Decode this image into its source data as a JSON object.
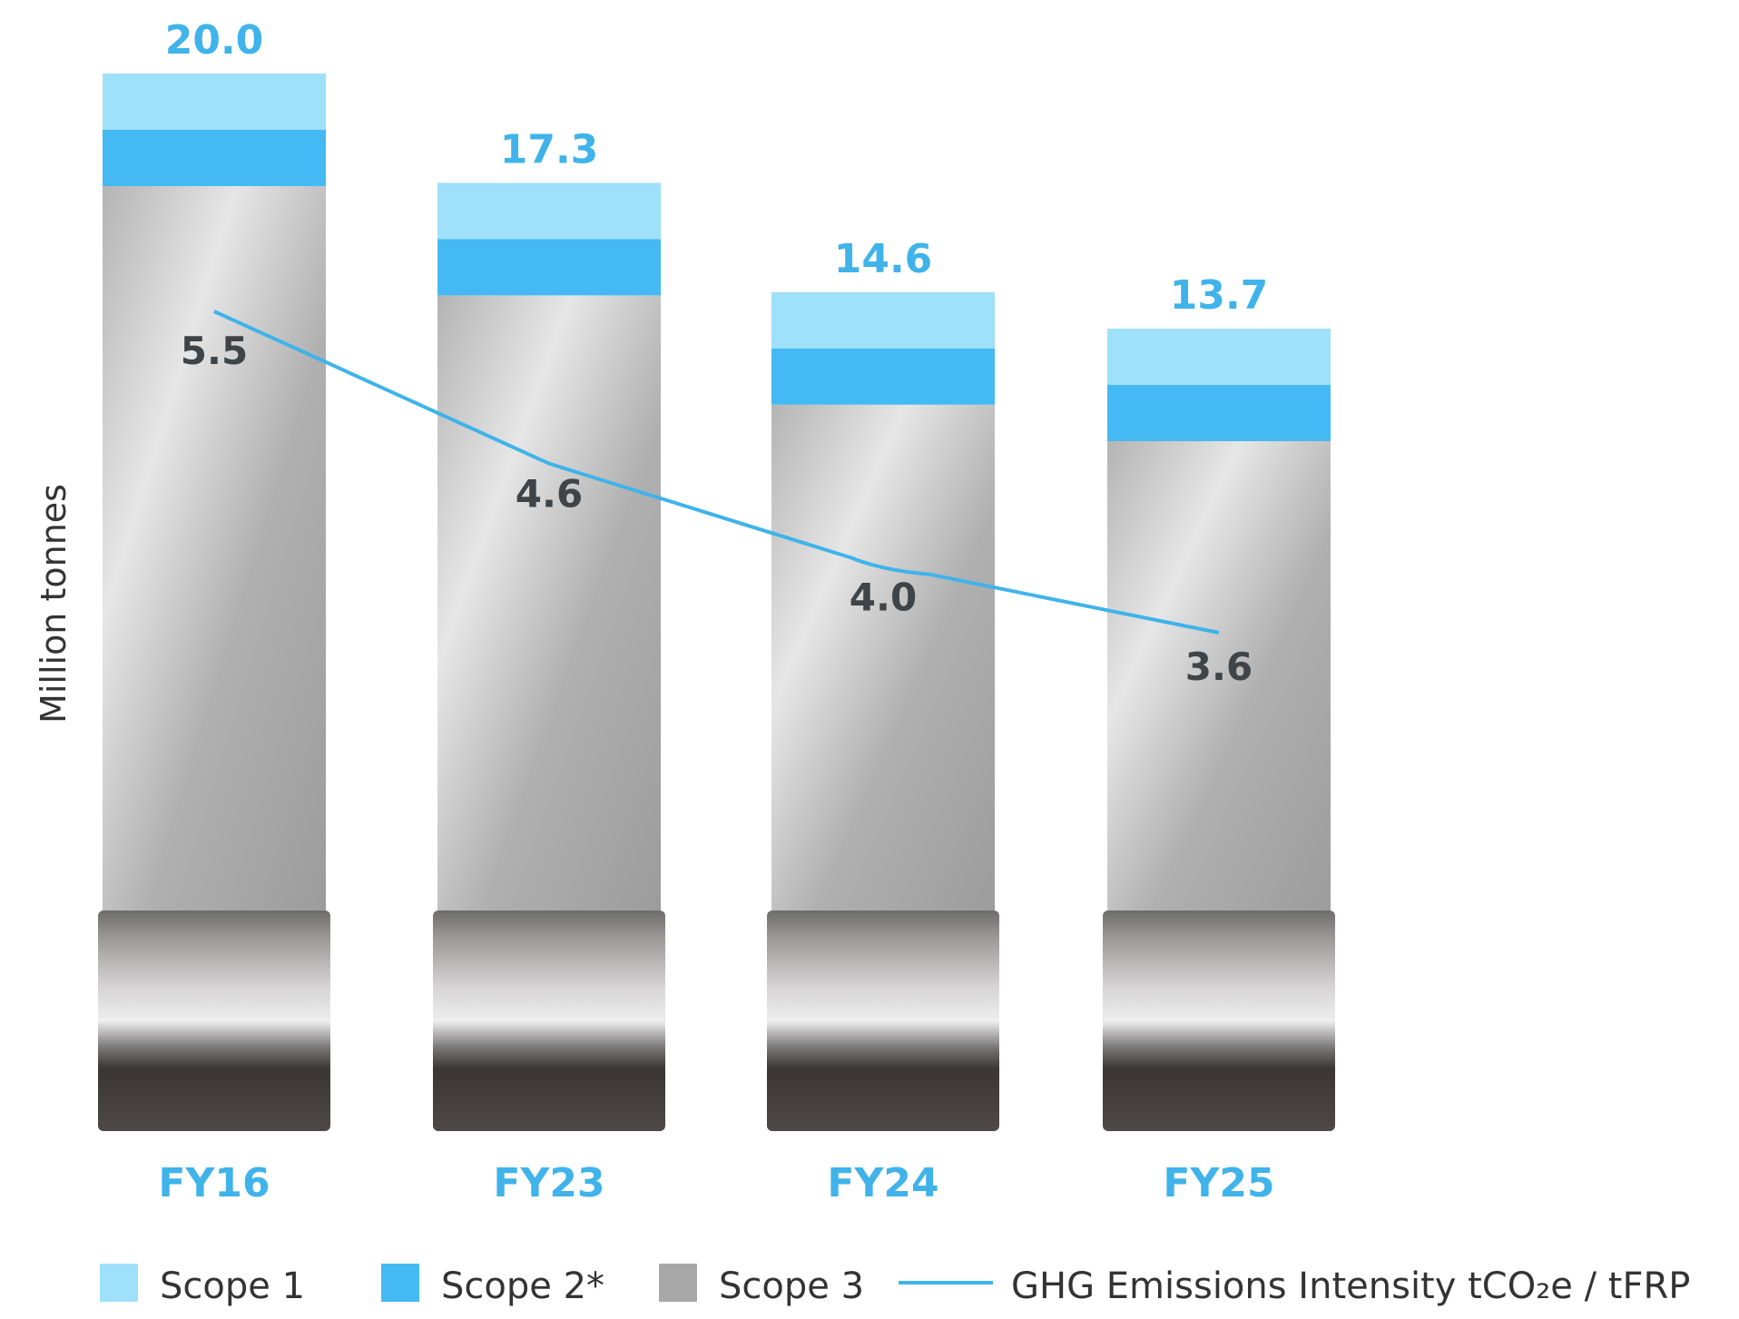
{
  "chart_data": {
    "type": "bar",
    "stacked": true,
    "categories": [
      "FY16",
      "FY23",
      "FY24",
      "FY25"
    ],
    "totals": [
      "20.0",
      "17.3",
      "14.6",
      "13.7"
    ],
    "total_values": [
      20.0,
      17.3,
      14.6,
      13.7
    ],
    "ylabel": "Million tonnes",
    "series": [
      {
        "name": "Scope 1",
        "color": "#9fe0fb",
        "values": [
          1.0,
          1.0,
          1.0,
          1.0
        ]
      },
      {
        "name": "Scope 2*",
        "color": "#45b9f3",
        "values": [
          1.0,
          1.0,
          1.0,
          1.0
        ]
      },
      {
        "name": "Scope 3",
        "color": "#a8a8a8",
        "values": [
          18.0,
          15.3,
          12.6,
          11.7
        ]
      }
    ],
    "line_series": {
      "name": "GHG Emissions Intensity tCO₂e / tFRP",
      "color": "#3fb3ea",
      "values": [
        5.5,
        4.6,
        4.0,
        3.6
      ],
      "labels": [
        "5.5",
        "4.6",
        "4.0",
        "3.6"
      ]
    },
    "legend_position": "bottom",
    "grid": false,
    "axis_color": "#3fb3ea",
    "label_color": "#3f4448"
  }
}
